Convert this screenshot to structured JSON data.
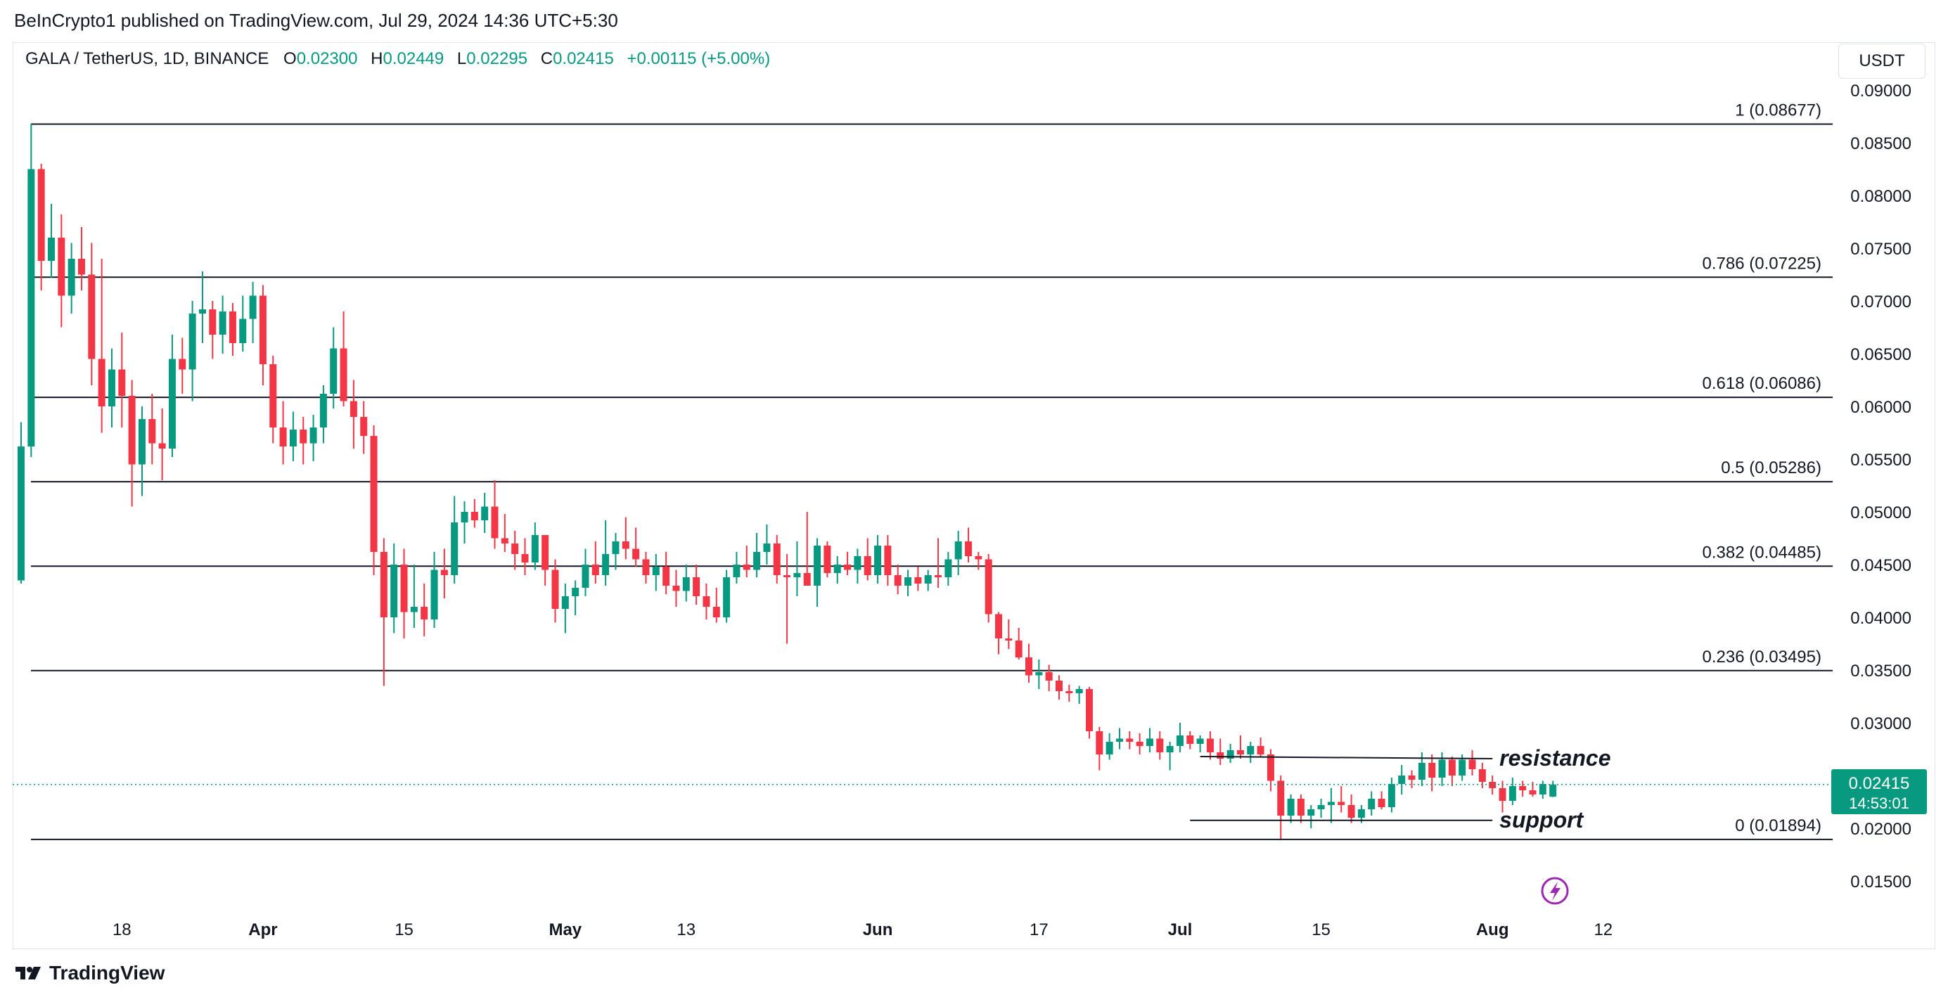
{
  "header": {
    "published": "BeInCrypto1 published on TradingView.com, Jul 29, 2024 14:36 UTC+5:30"
  },
  "legend": {
    "symbol": "GALA / TetherUS, 1D, BINANCE",
    "open_label": "O",
    "open": "0.02300",
    "high_label": "H",
    "high": "0.02449",
    "low_label": "L",
    "low": "0.02295",
    "close_label": "C",
    "close": "0.02415",
    "change": "+0.00115 (+5.00%)"
  },
  "currency": "USDT",
  "price_badge": {
    "price": "0.02415",
    "countdown": "14:53:01"
  },
  "footer": {
    "brand": "TradingView"
  },
  "colors": {
    "up": "#089981",
    "down": "#f23645",
    "line": "#131722",
    "grid_text": "#131722",
    "price_line": "#089981",
    "flash": "#9c27b0"
  },
  "icons": {
    "footer_logo": "tradingview-logo-icon",
    "flash": "lightning-icon"
  },
  "chart_data": {
    "type": "candlestick",
    "title": "GALA / TetherUS, 1D, BINANCE",
    "ylabel": "USDT",
    "ylim": [
      0.0125,
      0.0915
    ],
    "y_ticks": [
      "0.09000",
      "0.08500",
      "0.08000",
      "0.07500",
      "0.07000",
      "0.06500",
      "0.06000",
      "0.05500",
      "0.05000",
      "0.04500",
      "0.04000",
      "0.03500",
      "0.03000",
      "0.02000",
      "0.01500"
    ],
    "x_ticks": [
      {
        "label": "18",
        "day": 10
      },
      {
        "label": "Apr",
        "day": 24
      },
      {
        "label": "15",
        "day": 38
      },
      {
        "label": "May",
        "day": 54
      },
      {
        "label": "13",
        "day": 66
      },
      {
        "label": "Jun",
        "day": 85
      },
      {
        "label": "17",
        "day": 101
      },
      {
        "label": "Jul",
        "day": 115
      },
      {
        "label": "15",
        "day": 129
      },
      {
        "label": "Aug",
        "day": 146
      },
      {
        "label": "12",
        "day": 157
      }
    ],
    "fibonacci": [
      {
        "label": "1 (0.08677)",
        "value": 0.08677
      },
      {
        "label": "0.786 (0.07225)",
        "value": 0.07225
      },
      {
        "label": "0.618 (0.06086)",
        "value": 0.06086
      },
      {
        "label": "0.5 (0.05286)",
        "value": 0.05286
      },
      {
        "label": "0.382 (0.04485)",
        "value": 0.04485
      },
      {
        "label": "0.236 (0.03495)",
        "value": 0.03495
      },
      {
        "label": "0 (0.01894)",
        "value": 0.01894
      }
    ],
    "annotations": [
      {
        "label": "resistance",
        "day_start": 117,
        "day_end": 146,
        "value_start": 0.0268,
        "value_end": 0.0266
      },
      {
        "label": "support",
        "day_start": 116,
        "day_end": 146,
        "value_start": 0.02075,
        "value_end": 0.02075
      }
    ],
    "current_price": 0.02415,
    "first_day": 0,
    "candles": [
      [
        0.0435,
        0.0585,
        0.0432,
        0.0562
      ],
      [
        0.0562,
        0.0868,
        0.0552,
        0.0825
      ],
      [
        0.0825,
        0.083,
        0.071,
        0.0738
      ],
      [
        0.0738,
        0.0792,
        0.0722,
        0.076
      ],
      [
        0.076,
        0.0782,
        0.0675,
        0.0705
      ],
      [
        0.0705,
        0.0755,
        0.0688,
        0.074
      ],
      [
        0.074,
        0.077,
        0.071,
        0.0725
      ],
      [
        0.0725,
        0.0755,
        0.062,
        0.0645
      ],
      [
        0.0645,
        0.074,
        0.0575,
        0.06
      ],
      [
        0.06,
        0.0655,
        0.058,
        0.0635
      ],
      [
        0.0635,
        0.067,
        0.058,
        0.061
      ],
      [
        0.061,
        0.0625,
        0.0505,
        0.0545
      ],
      [
        0.0545,
        0.06,
        0.0515,
        0.0588
      ],
      [
        0.0588,
        0.0612,
        0.0545,
        0.0565
      ],
      [
        0.0565,
        0.0598,
        0.053,
        0.056
      ],
      [
        0.056,
        0.0668,
        0.0552,
        0.0645
      ],
      [
        0.0645,
        0.0665,
        0.0612,
        0.0635
      ],
      [
        0.0635,
        0.07,
        0.0605,
        0.0688
      ],
      [
        0.0688,
        0.0728,
        0.066,
        0.0692
      ],
      [
        0.0692,
        0.07,
        0.0645,
        0.0668
      ],
      [
        0.0668,
        0.0705,
        0.065,
        0.069
      ],
      [
        0.069,
        0.0698,
        0.0648,
        0.066
      ],
      [
        0.066,
        0.0705,
        0.0652,
        0.0683
      ],
      [
        0.0683,
        0.0718,
        0.066,
        0.0705
      ],
      [
        0.0705,
        0.0715,
        0.062,
        0.064
      ],
      [
        0.064,
        0.0648,
        0.0565,
        0.058
      ],
      [
        0.058,
        0.0605,
        0.0545,
        0.0562
      ],
      [
        0.0562,
        0.0595,
        0.0548,
        0.0578
      ],
      [
        0.0578,
        0.059,
        0.0545,
        0.0565
      ],
      [
        0.0565,
        0.0592,
        0.0548,
        0.058
      ],
      [
        0.058,
        0.062,
        0.0565,
        0.0612
      ],
      [
        0.0612,
        0.0675,
        0.0598,
        0.0655
      ],
      [
        0.0655,
        0.069,
        0.06,
        0.0605
      ],
      [
        0.0605,
        0.0625,
        0.056,
        0.059
      ],
      [
        0.059,
        0.0605,
        0.0555,
        0.0572
      ],
      [
        0.0572,
        0.0582,
        0.044,
        0.0462
      ],
      [
        0.0462,
        0.0475,
        0.0335,
        0.04
      ],
      [
        0.04,
        0.047,
        0.0385,
        0.045
      ],
      [
        0.045,
        0.0465,
        0.038,
        0.0405
      ],
      [
        0.0405,
        0.045,
        0.039,
        0.041
      ],
      [
        0.041,
        0.0432,
        0.0382,
        0.0398
      ],
      [
        0.0398,
        0.0462,
        0.039,
        0.0445
      ],
      [
        0.0445,
        0.0465,
        0.0418,
        0.044
      ],
      [
        0.044,
        0.0515,
        0.0432,
        0.049
      ],
      [
        0.049,
        0.051,
        0.047,
        0.05
      ],
      [
        0.05,
        0.0512,
        0.0485,
        0.0492
      ],
      [
        0.0492,
        0.0518,
        0.048,
        0.0505
      ],
      [
        0.0505,
        0.053,
        0.0465,
        0.0475
      ],
      [
        0.0475,
        0.0498,
        0.0462,
        0.047
      ],
      [
        0.047,
        0.0482,
        0.0445,
        0.046
      ],
      [
        0.046,
        0.0475,
        0.044,
        0.0452
      ],
      [
        0.0452,
        0.049,
        0.0445,
        0.0478
      ],
      [
        0.0478,
        0.0478,
        0.043,
        0.0445
      ],
      [
        0.0445,
        0.0455,
        0.0395,
        0.0408
      ],
      [
        0.0408,
        0.0432,
        0.0385,
        0.042
      ],
      [
        0.042,
        0.0435,
        0.0402,
        0.0428
      ],
      [
        0.0428,
        0.0465,
        0.042,
        0.045
      ],
      [
        0.045,
        0.0472,
        0.0432,
        0.044
      ],
      [
        0.044,
        0.0492,
        0.043,
        0.046
      ],
      [
        0.046,
        0.048,
        0.0445,
        0.0472
      ],
      [
        0.0472,
        0.0495,
        0.0455,
        0.0465
      ],
      [
        0.0465,
        0.0485,
        0.0448,
        0.0455
      ],
      [
        0.0455,
        0.0462,
        0.0432,
        0.044
      ],
      [
        0.044,
        0.046,
        0.0425,
        0.0448
      ],
      [
        0.0448,
        0.0462,
        0.0422,
        0.043
      ],
      [
        0.043,
        0.0445,
        0.041,
        0.0425
      ],
      [
        0.0425,
        0.045,
        0.0415,
        0.0438
      ],
      [
        0.0438,
        0.045,
        0.0412,
        0.042
      ],
      [
        0.042,
        0.0432,
        0.0398,
        0.041
      ],
      [
        0.041,
        0.0428,
        0.0395,
        0.04
      ],
      [
        0.04,
        0.0445,
        0.0395,
        0.0438
      ],
      [
        0.0438,
        0.0462,
        0.0432,
        0.045
      ],
      [
        0.045,
        0.0468,
        0.0438,
        0.0445
      ],
      [
        0.0445,
        0.048,
        0.0438,
        0.0462
      ],
      [
        0.0462,
        0.0488,
        0.045,
        0.047
      ],
      [
        0.047,
        0.0478,
        0.0432,
        0.044
      ],
      [
        0.044,
        0.046,
        0.0375,
        0.0438
      ],
      [
        0.0438,
        0.0472,
        0.042,
        0.0442
      ],
      [
        0.0442,
        0.05,
        0.043,
        0.043
      ],
      [
        0.043,
        0.0475,
        0.041,
        0.0468
      ],
      [
        0.0468,
        0.0472,
        0.0438,
        0.0442
      ],
      [
        0.0442,
        0.0458,
        0.0432,
        0.045
      ],
      [
        0.045,
        0.0462,
        0.044,
        0.0445
      ],
      [
        0.0445,
        0.0465,
        0.0432,
        0.0458
      ],
      [
        0.0458,
        0.0475,
        0.0435,
        0.044
      ],
      [
        0.044,
        0.0478,
        0.0432,
        0.0468
      ],
      [
        0.0468,
        0.0478,
        0.043,
        0.044
      ],
      [
        0.044,
        0.045,
        0.0422,
        0.043
      ],
      [
        0.043,
        0.0445,
        0.042,
        0.0438
      ],
      [
        0.0438,
        0.0448,
        0.0425,
        0.0432
      ],
      [
        0.0432,
        0.0445,
        0.0425,
        0.044
      ],
      [
        0.044,
        0.0475,
        0.0428,
        0.0438
      ],
      [
        0.0438,
        0.0462,
        0.043,
        0.0455
      ],
      [
        0.0455,
        0.0482,
        0.044,
        0.0472
      ],
      [
        0.0472,
        0.0485,
        0.0452,
        0.0458
      ],
      [
        0.0458,
        0.0462,
        0.0445,
        0.0455
      ],
      [
        0.0455,
        0.046,
        0.0395,
        0.0403
      ],
      [
        0.0403,
        0.0405,
        0.0365,
        0.038
      ],
      [
        0.038,
        0.0398,
        0.037,
        0.0378
      ],
      [
        0.0378,
        0.039,
        0.036,
        0.0362
      ],
      [
        0.0362,
        0.0375,
        0.0338,
        0.0345
      ],
      [
        0.0345,
        0.036,
        0.0332,
        0.0348
      ],
      [
        0.0348,
        0.0355,
        0.033,
        0.034
      ],
      [
        0.034,
        0.0345,
        0.0322,
        0.033
      ],
      [
        0.033,
        0.0336,
        0.032,
        0.0328
      ],
      [
        0.0328,
        0.0335,
        0.0318,
        0.0332
      ],
      [
        0.0332,
        0.0334,
        0.0285,
        0.0292
      ],
      [
        0.0292,
        0.0296,
        0.0255,
        0.027
      ],
      [
        0.027,
        0.029,
        0.0265,
        0.0282
      ],
      [
        0.0282,
        0.0295,
        0.0275,
        0.0285
      ],
      [
        0.0285,
        0.0292,
        0.0275,
        0.0282
      ],
      [
        0.0282,
        0.029,
        0.027,
        0.0278
      ],
      [
        0.0278,
        0.0295,
        0.0272,
        0.0285
      ],
      [
        0.0285,
        0.0292,
        0.0265,
        0.0272
      ],
      [
        0.0272,
        0.0282,
        0.0255,
        0.0278
      ],
      [
        0.0278,
        0.03,
        0.0272,
        0.0288
      ],
      [
        0.0288,
        0.0292,
        0.0275,
        0.028
      ],
      [
        0.028,
        0.0288,
        0.0272,
        0.0285
      ],
      [
        0.0285,
        0.0292,
        0.0265,
        0.0272
      ],
      [
        0.0272,
        0.0285,
        0.026,
        0.0266
      ],
      [
        0.0266,
        0.028,
        0.0262,
        0.0274
      ],
      [
        0.0274,
        0.0288,
        0.0266,
        0.027
      ],
      [
        0.027,
        0.0282,
        0.0262,
        0.0278
      ],
      [
        0.0278,
        0.0286,
        0.0268,
        0.027
      ],
      [
        0.027,
        0.0275,
        0.0235,
        0.0245
      ],
      [
        0.0245,
        0.025,
        0.019,
        0.0212
      ],
      [
        0.0212,
        0.0232,
        0.0205,
        0.0228
      ],
      [
        0.0228,
        0.0232,
        0.0205,
        0.0212
      ],
      [
        0.0212,
        0.0222,
        0.02,
        0.0218
      ],
      [
        0.0218,
        0.0228,
        0.021,
        0.0222
      ],
      [
        0.0222,
        0.0238,
        0.0205,
        0.0225
      ],
      [
        0.0225,
        0.024,
        0.0215,
        0.0222
      ],
      [
        0.0222,
        0.0232,
        0.0205,
        0.021
      ],
      [
        0.021,
        0.0222,
        0.0205,
        0.0218
      ],
      [
        0.0218,
        0.0235,
        0.0212,
        0.0228
      ],
      [
        0.0228,
        0.0235,
        0.0218,
        0.022
      ],
      [
        0.022,
        0.0248,
        0.0215,
        0.0242
      ],
      [
        0.0242,
        0.026,
        0.0232,
        0.025
      ],
      [
        0.025,
        0.0255,
        0.0238,
        0.0246
      ],
      [
        0.0246,
        0.0272,
        0.024,
        0.0262
      ],
      [
        0.0262,
        0.027,
        0.0235,
        0.0248
      ],
      [
        0.0248,
        0.0272,
        0.024,
        0.0265
      ],
      [
        0.0265,
        0.0268,
        0.024,
        0.025
      ],
      [
        0.025,
        0.027,
        0.0245,
        0.0265
      ],
      [
        0.0265,
        0.0274,
        0.025,
        0.0256
      ],
      [
        0.0256,
        0.0262,
        0.0238,
        0.0244
      ],
      [
        0.0244,
        0.025,
        0.0232,
        0.0238
      ],
      [
        0.0238,
        0.0245,
        0.0215,
        0.0226
      ],
      [
        0.0226,
        0.0248,
        0.0222,
        0.024
      ],
      [
        0.024,
        0.0245,
        0.023,
        0.0236
      ],
      [
        0.0236,
        0.0244,
        0.023,
        0.0232
      ],
      [
        0.0232,
        0.0245,
        0.0228,
        0.0242
      ],
      [
        0.023,
        0.02449,
        0.02295,
        0.02415
      ]
    ]
  }
}
